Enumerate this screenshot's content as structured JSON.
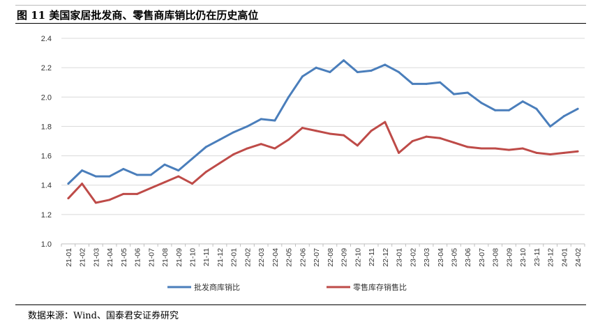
{
  "header": {
    "title": "图 11 美国家居批发商、零售商库销比仍在历史高位"
  },
  "footer": {
    "source": "数据来源：Wind、国泰君安证券研究"
  },
  "chart_data": {
    "type": "line",
    "title": "",
    "xlabel": "",
    "ylabel": "",
    "ylim": [
      1.0,
      2.4
    ],
    "yticks": [
      "1.0",
      "1.2",
      "1.4",
      "1.6",
      "1.8",
      "2.0",
      "2.2",
      "2.4"
    ],
    "grid": true,
    "legend_position": "bottom",
    "categories": [
      "21-01",
      "21-02",
      "21-03",
      "21-04",
      "21-05",
      "21-06",
      "21-07",
      "21-08",
      "21-09",
      "21-10",
      "21-11",
      "21-12",
      "22-01",
      "22-02",
      "22-03",
      "22-04",
      "22-05",
      "22-06",
      "22-07",
      "22-08",
      "22-09",
      "22-10",
      "22-11",
      "22-12",
      "23-01",
      "23-02",
      "23-03",
      "23-04",
      "23-05",
      "23-06",
      "23-07",
      "23-08",
      "23-09",
      "23-10",
      "23-11",
      "23-12",
      "24-01",
      "24-02"
    ],
    "series": [
      {
        "name": "批发商库销比",
        "color": "#4a7ebb",
        "values": [
          1.41,
          1.5,
          1.46,
          1.46,
          1.51,
          1.47,
          1.47,
          1.54,
          1.5,
          1.58,
          1.66,
          1.71,
          1.76,
          1.8,
          1.85,
          1.84,
          2.0,
          2.14,
          2.2,
          2.17,
          2.25,
          2.17,
          2.18,
          2.22,
          2.17,
          2.09,
          2.09,
          2.1,
          2.02,
          2.03,
          1.96,
          1.91,
          1.91,
          1.97,
          1.92,
          1.8,
          1.87,
          1.92
        ]
      },
      {
        "name": "零售库存销售比",
        "color": "#be4b48",
        "values": [
          1.31,
          1.41,
          1.28,
          1.3,
          1.34,
          1.34,
          1.38,
          1.42,
          1.46,
          1.41,
          1.49,
          1.55,
          1.61,
          1.65,
          1.68,
          1.65,
          1.71,
          1.79,
          1.77,
          1.75,
          1.74,
          1.67,
          1.77,
          1.83,
          1.62,
          1.7,
          1.73,
          1.72,
          1.69,
          1.66,
          1.65,
          1.65,
          1.64,
          1.65,
          1.62,
          1.61,
          1.62,
          1.63
        ]
      }
    ]
  }
}
